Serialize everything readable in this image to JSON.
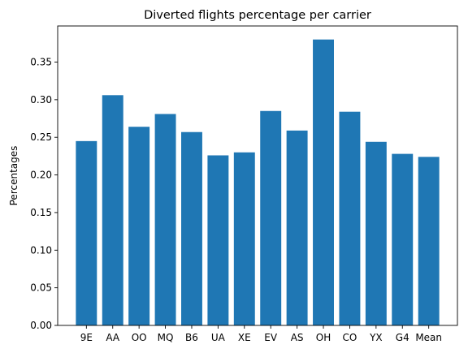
{
  "chart_data": {
    "type": "bar",
    "title": "Diverted flights percentage per carrier",
    "xlabel": "",
    "ylabel": "Percentages",
    "categories": [
      "9E",
      "AA",
      "OO",
      "MQ",
      "B6",
      "UA",
      "XE",
      "EV",
      "AS",
      "OH",
      "CO",
      "YX",
      "G4",
      "Mean"
    ],
    "values": [
      0.245,
      0.306,
      0.264,
      0.281,
      0.257,
      0.226,
      0.23,
      0.285,
      0.259,
      0.38,
      0.284,
      0.244,
      0.228,
      0.224
    ],
    "yticks": [
      "0.00",
      "0.05",
      "0.10",
      "0.15",
      "0.20",
      "0.25",
      "0.30",
      "0.35"
    ],
    "ylim": [
      0,
      0.398
    ],
    "bar_color": "#1f77b4",
    "grid": false,
    "legend": "none"
  }
}
